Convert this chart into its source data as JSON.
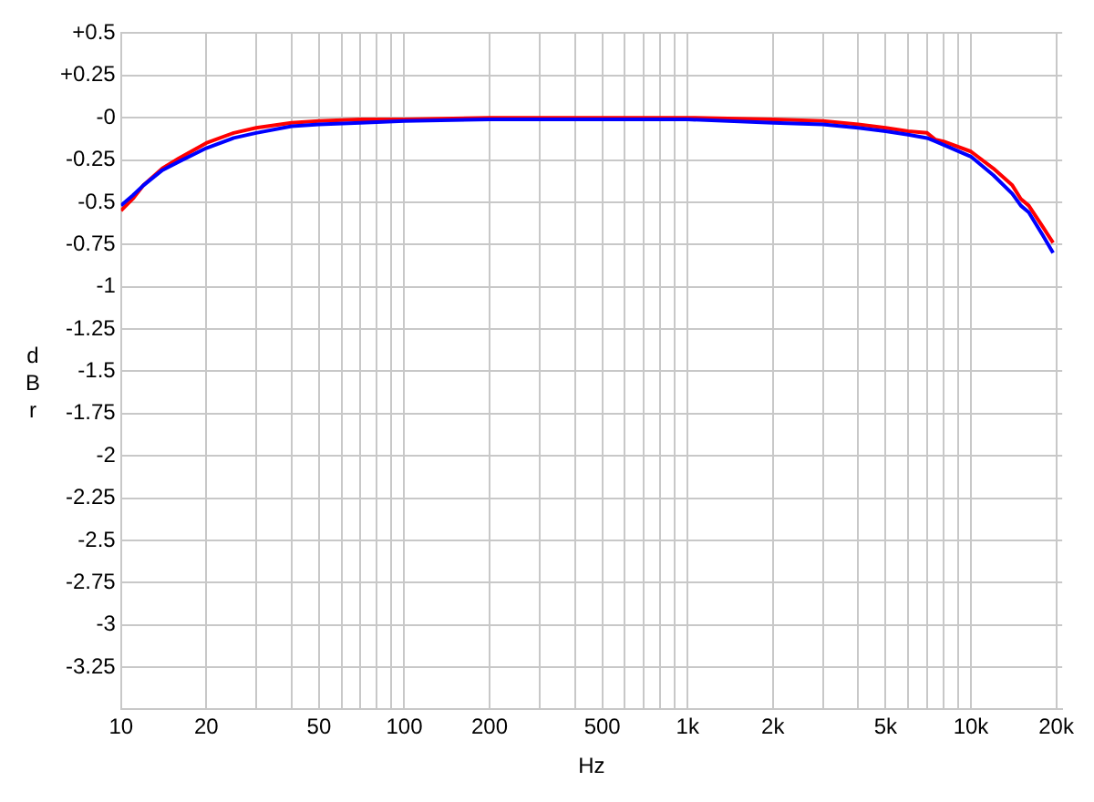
{
  "chart_data": {
    "type": "line",
    "xlabel": "Hz",
    "ylabel": "dBr",
    "log": "x",
    "grid": true,
    "legend": false,
    "marker": "none",
    "line_style": "solid",
    "xlim": [
      10,
      21000
    ],
    "xticks": [
      10,
      20,
      {
        "value": 30,
        "label": null
      },
      {
        "value": 40,
        "label": null
      },
      50,
      {
        "value": 60,
        "label": null
      },
      {
        "value": 70,
        "label": null
      },
      {
        "value": 80,
        "label": null
      },
      {
        "value": 90,
        "label": null
      },
      100,
      200,
      {
        "value": 300,
        "label": null
      },
      {
        "value": 400,
        "label": null
      },
      500,
      {
        "value": 600,
        "label": null
      },
      {
        "value": 700,
        "label": null
      },
      {
        "value": 800,
        "label": null
      },
      {
        "value": 900,
        "label": null
      },
      {
        "value": 1000,
        "label": "1k"
      },
      {
        "value": 2000,
        "label": "2k"
      },
      {
        "value": 3000,
        "label": null
      },
      {
        "value": 4000,
        "label": null
      },
      {
        "value": 5000,
        "label": "5k"
      },
      {
        "value": 6000,
        "label": null
      },
      {
        "value": 7000,
        "label": null
      },
      {
        "value": 8000,
        "label": null
      },
      {
        "value": 9000,
        "label": null
      },
      {
        "value": 10000,
        "label": "10k"
      },
      {
        "value": 20000,
        "label": "20k"
      }
    ],
    "ylim": [
      -3.5,
      0.5
    ],
    "yticks": [
      {
        "value": -3.5,
        "label": null
      },
      -3.25,
      -3,
      -2.75,
      -2.5,
      -2.25,
      -2,
      -1.75,
      -1.5,
      -1.25,
      -1,
      -0.75,
      -0.5,
      -0.25,
      {
        "value": 0,
        "label": "-0"
      },
      {
        "value": 0.25,
        "label": "+0.25"
      },
      {
        "value": 0.5,
        "label": "+0.5"
      }
    ],
    "x": [
      10,
      11,
      12,
      14,
      16,
      20,
      25,
      30,
      40,
      50,
      70,
      100,
      200,
      500,
      1000,
      2000,
      3000,
      4000,
      5000,
      6000,
      7000,
      7500,
      8000,
      10000,
      12000,
      14000,
      15000,
      16000,
      18000,
      19500
    ],
    "series": [
      {
        "color": "#0000ff",
        "values": [
          -0.52,
          -0.46,
          -0.4,
          -0.31,
          -0.26,
          -0.18,
          -0.12,
          -0.09,
          -0.05,
          -0.04,
          -0.03,
          -0.02,
          -0.01,
          -0.01,
          -0.01,
          -0.03,
          -0.04,
          -0.06,
          -0.08,
          -0.1,
          -0.12,
          -0.14,
          -0.16,
          -0.23,
          -0.34,
          -0.45,
          -0.52,
          -0.56,
          -0.7,
          -0.8
        ]
      },
      {
        "color": "#ff0000",
        "values": [
          -0.55,
          -0.48,
          -0.4,
          -0.3,
          -0.24,
          -0.15,
          -0.09,
          -0.06,
          -0.03,
          -0.02,
          -0.01,
          -0.01,
          0,
          0,
          0,
          -0.01,
          -0.02,
          -0.04,
          -0.06,
          -0.08,
          -0.09,
          -0.13,
          -0.14,
          -0.2,
          -0.3,
          -0.4,
          -0.48,
          -0.52,
          -0.65,
          -0.74
        ]
      }
    ]
  }
}
